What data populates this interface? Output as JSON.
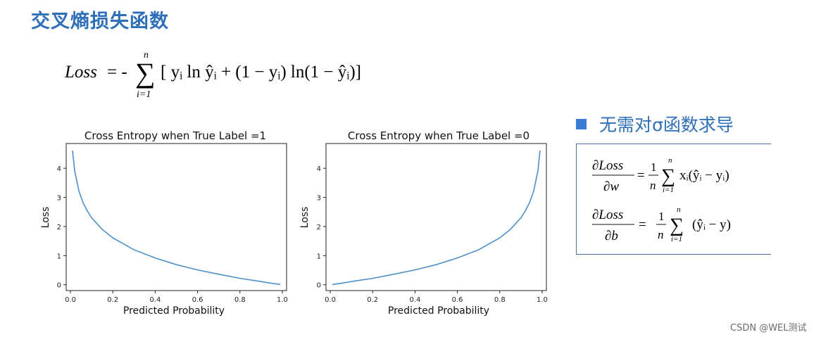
{
  "page": {
    "title": "交叉熵损失函数",
    "bullet_text": "无需对σ函数求导",
    "watermark": "CSDN @WEL测试"
  },
  "formulas": {
    "loss": {
      "lhs": "Loss",
      "eq": "= -",
      "sum_upper": "n",
      "sum_lower": "i=1",
      "body": "[ yᵢ ln ŷᵢ + (1 − yᵢ) ln(1 − ŷᵢ)]"
    },
    "dw": {
      "num": "∂Loss",
      "den": "∂w",
      "coef_num": "1",
      "coef_den": "n",
      "sum_upper": "n",
      "sum_lower": "i=1",
      "body": "xᵢ(ŷᵢ − yᵢ)"
    },
    "db": {
      "num": "∂Loss",
      "den": "∂b",
      "coef_num": "1",
      "coef_den": "n",
      "sum_upper": "n",
      "sum_lower": "i=1",
      "body": "(ŷᵢ − y)"
    }
  },
  "chart_data": [
    {
      "type": "line",
      "title": "Cross Entropy when True Label =1",
      "xlabel": "Predicted Probability",
      "ylabel": "Loss",
      "xlim": [
        -0.02,
        1.02
      ],
      "ylim": [
        -0.2,
        4.85
      ],
      "xticks": [
        "0.0",
        "0.2",
        "0.4",
        "0.6",
        "0.8",
        "1.0"
      ],
      "yticks": [
        "0",
        "1",
        "2",
        "3",
        "4"
      ],
      "series": [
        {
          "x": [
            0.01,
            0.02,
            0.04,
            0.06,
            0.08,
            0.1,
            0.15,
            0.2,
            0.3,
            0.4,
            0.5,
            0.6,
            0.7,
            0.8,
            0.9,
            0.95,
            0.99
          ],
          "values": [
            4.61,
            3.91,
            3.22,
            2.81,
            2.53,
            2.3,
            1.9,
            1.61,
            1.2,
            0.92,
            0.69,
            0.51,
            0.36,
            0.22,
            0.11,
            0.05,
            0.01
          ]
        }
      ],
      "line_color": "#4d8fc8",
      "grid": false
    },
    {
      "type": "line",
      "title": "Cross Entropy when True Label =0",
      "xlabel": "Predicted Probability",
      "ylabel": "Loss",
      "xlim": [
        -0.02,
        1.02
      ],
      "ylim": [
        -0.2,
        4.85
      ],
      "xticks": [
        "0.0",
        "0.2",
        "0.4",
        "0.6",
        "0.8",
        "1.0"
      ],
      "yticks": [
        "0",
        "1",
        "2",
        "3",
        "4"
      ],
      "series": [
        {
          "x": [
            0.01,
            0.05,
            0.1,
            0.2,
            0.3,
            0.4,
            0.5,
            0.6,
            0.7,
            0.8,
            0.85,
            0.9,
            0.92,
            0.94,
            0.96,
            0.98,
            0.99
          ],
          "values": [
            0.01,
            0.05,
            0.11,
            0.22,
            0.36,
            0.51,
            0.69,
            0.92,
            1.2,
            1.61,
            1.9,
            2.3,
            2.53,
            2.81,
            3.22,
            3.91,
            4.61
          ]
        }
      ],
      "line_color": "#4d8fc8",
      "grid": false
    }
  ]
}
